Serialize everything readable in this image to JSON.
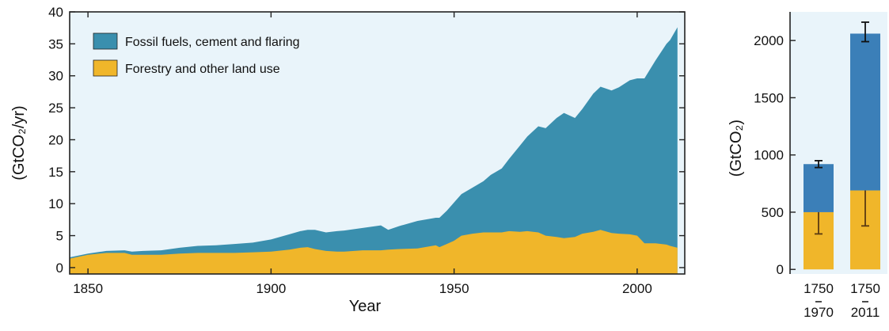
{
  "colors": {
    "fossil": "#3a8fae",
    "fossil_right": "#3b7fb8",
    "land": "#f0b62a",
    "panel_bg": "#e9f4fa",
    "error_bar": "#5a3a12"
  },
  "chart_data": [
    {
      "type": "area",
      "stacked": true,
      "title": "",
      "xlabel": "Year",
      "ylabel": "(GtCO₂/yr)",
      "xlim": [
        1845,
        2013
      ],
      "ylim": [
        -1,
        40
      ],
      "xticks": [
        1850,
        1900,
        1950,
        2000
      ],
      "yticks": [
        0,
        5,
        10,
        15,
        20,
        25,
        30,
        35,
        40
      ],
      "grid": false,
      "legend_position": "top-left",
      "x": [
        1845,
        1850,
        1855,
        1860,
        1862,
        1865,
        1870,
        1875,
        1880,
        1885,
        1890,
        1895,
        1900,
        1905,
        1908,
        1910,
        1912,
        1915,
        1918,
        1920,
        1925,
        1930,
        1932,
        1935,
        1940,
        1945,
        1946,
        1948,
        1950,
        1952,
        1955,
        1958,
        1960,
        1963,
        1965,
        1968,
        1970,
        1973,
        1975,
        1978,
        1980,
        1983,
        1985,
        1988,
        1990,
        1993,
        1995,
        1998,
        2000,
        2002,
        2005,
        2008,
        2009,
        2011
      ],
      "series": [
        {
          "name": "Forestry and other land use",
          "values": [
            1.4,
            2.0,
            2.3,
            2.3,
            2.0,
            2.0,
            2.0,
            2.2,
            2.3,
            2.3,
            2.3,
            2.4,
            2.5,
            2.8,
            3.1,
            3.2,
            2.9,
            2.6,
            2.5,
            2.5,
            2.7,
            2.7,
            2.8,
            2.9,
            3.0,
            3.5,
            3.2,
            3.7,
            4.2,
            5.0,
            5.3,
            5.5,
            5.5,
            5.5,
            5.7,
            5.6,
            5.7,
            5.5,
            5.0,
            4.8,
            4.6,
            4.8,
            5.3,
            5.6,
            5.9,
            5.4,
            5.3,
            5.2,
            5.0,
            3.8,
            3.8,
            3.6,
            3.4,
            3.1
          ]
        },
        {
          "name": "Fossil fuels, cement and flaring",
          "values": [
            0.2,
            0.2,
            0.3,
            0.4,
            0.5,
            0.6,
            0.7,
            0.9,
            1.1,
            1.2,
            1.4,
            1.5,
            1.9,
            2.4,
            2.6,
            2.7,
            3.0,
            2.9,
            3.2,
            3.3,
            3.5,
            3.9,
            3.1,
            3.6,
            4.3,
            4.3,
            4.6,
            5.2,
            6.0,
            6.5,
            7.2,
            8.0,
            9.0,
            10.0,
            11.3,
            13.5,
            14.8,
            16.6,
            16.8,
            18.6,
            19.6,
            18.6,
            19.5,
            21.6,
            22.4,
            22.3,
            22.9,
            24.1,
            24.6,
            25.8,
            28.6,
            31.4,
            32.2,
            34.5
          ]
        }
      ]
    },
    {
      "type": "bar",
      "stacked": true,
      "title": "",
      "xlabel": "",
      "ylabel": "(GtCO₂)",
      "ylim": [
        -40,
        2250
      ],
      "yticks": [
        0,
        500,
        1000,
        1500,
        2000
      ],
      "categories": [
        {
          "top": "1750",
          "bottom": "1970"
        },
        {
          "top": "1750",
          "bottom": "2011"
        }
      ],
      "series": [
        {
          "values": [
            500,
            690
          ],
          "errors": [
            [
              310,
              670
            ],
            [
              380,
              985
            ]
          ]
        },
        {
          "values": [
            420,
            1370
          ],
          "errors": [
            [
              890,
              950
            ],
            [
              1990,
              2160
            ]
          ]
        }
      ]
    }
  ]
}
